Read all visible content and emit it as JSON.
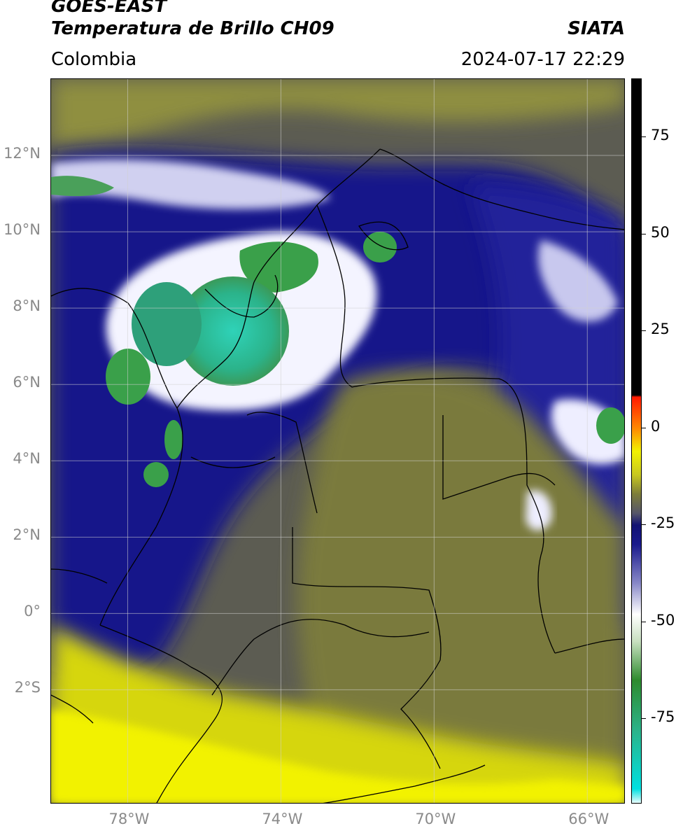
{
  "header": {
    "satellite": "GOES-EAST",
    "product": "Temperatura de Brillo CH09",
    "agency": "SIATA",
    "region": "Colombia",
    "timestamp": "2024-07-17 22:29"
  },
  "map": {
    "lon_range": [
      -80,
      -65
    ],
    "lat_range": [
      -5,
      14
    ],
    "lon_ticks": [
      {
        "value": -78,
        "label": "78°W"
      },
      {
        "value": -74,
        "label": "74°W"
      },
      {
        "value": -70,
        "label": "70°W"
      },
      {
        "value": -66,
        "label": "66°W"
      }
    ],
    "lat_ticks": [
      {
        "value": 12,
        "label": "12°N"
      },
      {
        "value": 10,
        "label": "10°N"
      },
      {
        "value": 8,
        "label": "8°N"
      },
      {
        "value": 6,
        "label": "6°N"
      },
      {
        "value": 4,
        "label": "4°N"
      },
      {
        "value": 2,
        "label": "2°N"
      },
      {
        "value": 0,
        "label": "0°"
      },
      {
        "value": -2,
        "label": "2°S"
      }
    ],
    "gridlines": true
  },
  "colorbar": {
    "range": [
      -97,
      90
    ],
    "ticks": [
      {
        "value": 75,
        "label": "75"
      },
      {
        "value": 50,
        "label": "50"
      },
      {
        "value": 25,
        "label": "25"
      },
      {
        "value": 0,
        "label": "0"
      },
      {
        "value": -25,
        "label": "-25"
      },
      {
        "value": -50,
        "label": "-50"
      },
      {
        "value": -75,
        "label": "-75"
      }
    ],
    "stops": [
      {
        "value": -97,
        "color": "#ffffff"
      },
      {
        "value": -93,
        "color": "#00e0e0"
      },
      {
        "value": -78,
        "color": "#2bb38a"
      },
      {
        "value": -65,
        "color": "#2e8b2e"
      },
      {
        "value": -55,
        "color": "#c8e0c0"
      },
      {
        "value": -48,
        "color": "#ffffff"
      },
      {
        "value": -40,
        "color": "#8888c8"
      },
      {
        "value": -30,
        "color": "#1a1a8c"
      },
      {
        "value": -25,
        "color": "#121273"
      },
      {
        "value": -22,
        "color": "#55556a"
      },
      {
        "value": -17,
        "color": "#7d7d3a"
      },
      {
        "value": -12,
        "color": "#c8c820"
      },
      {
        "value": -6,
        "color": "#f2f200"
      },
      {
        "value": 0,
        "color": "#ff8800"
      },
      {
        "value": 8,
        "color": "#ff1a00"
      },
      {
        "value": 8.5,
        "color": "#000000"
      },
      {
        "value": 90,
        "color": "#000000"
      }
    ]
  }
}
